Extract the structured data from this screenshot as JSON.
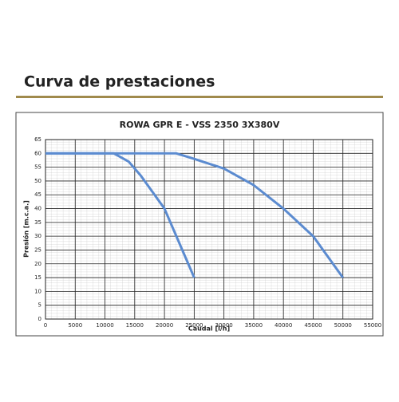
{
  "header": {
    "title": "Curva de prestaciones"
  },
  "chart_data": {
    "type": "line",
    "title": "ROWA GPR E - VSS 2350 3X380V",
    "x_label": "Caudal [l/h]",
    "y_label": "Presión [m.c.a.]",
    "series": [
      {
        "color": "#5b8bd0",
        "x": [
          0,
          11500,
          14000,
          16000,
          18000,
          20000,
          22000,
          24000,
          25000
        ],
        "values": [
          60,
          60,
          57,
          52,
          46,
          40,
          30,
          20,
          15
        ]
      },
      {
        "color": "#5b8bd0",
        "x": [
          0,
          22000,
          25000,
          30000,
          35000,
          40000,
          45000,
          50000
        ],
        "values": [
          60,
          60,
          58,
          54.5,
          48.5,
          40,
          30,
          15
        ]
      }
    ],
    "xlim": [
      0,
      55000
    ],
    "ylim": [
      0,
      65
    ],
    "xticks": [
      0,
      5000,
      10000,
      15000,
      20000,
      25000,
      30000,
      35000,
      40000,
      45000,
      50000,
      55000
    ],
    "yticks": [
      0,
      5,
      10,
      15,
      20,
      25,
      30,
      35,
      40,
      45,
      50,
      55,
      60,
      65
    ],
    "grid": true
  }
}
